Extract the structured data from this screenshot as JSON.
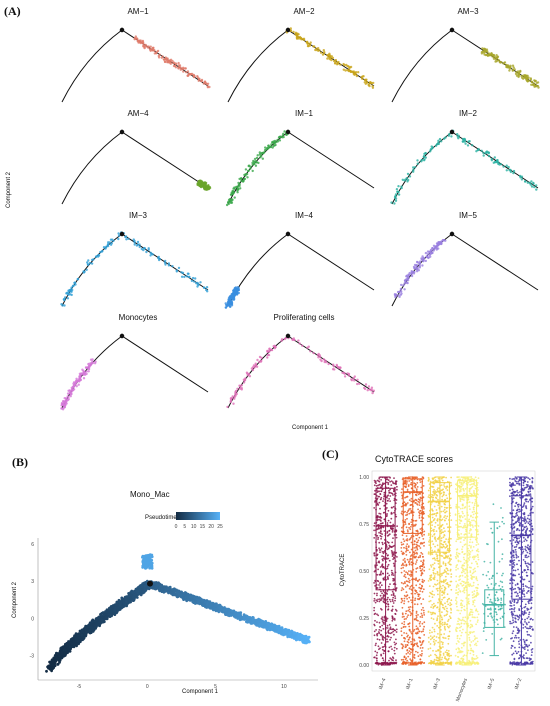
{
  "panel_labels": {
    "a": "(A)",
    "b": "(B)",
    "c": "(C)"
  },
  "chart_data": [
    {
      "type": "scatter",
      "layout": "facet-grid",
      "xlabel": "Component 1",
      "ylabel": "Component 2",
      "facets": [
        {
          "title": "AM−1",
          "color": "#e07b6a",
          "segment": "right",
          "range": [
            0.15,
            1.0
          ]
        },
        {
          "title": "AM−2",
          "color": "#c9a51a",
          "segment": "right",
          "range": [
            0.0,
            1.0
          ]
        },
        {
          "title": "AM−3",
          "color": "#a8a62a",
          "segment": "right",
          "range": [
            0.35,
            1.0
          ]
        },
        {
          "title": "AM−4",
          "color": "#6aa52a",
          "segment": "right",
          "range": [
            0.9,
            1.0
          ]
        },
        {
          "title": "IM−1",
          "color": "#3aa84a",
          "segment": "left",
          "range": [
            0.0,
            1.0
          ]
        },
        {
          "title": "IM−2",
          "color": "#2bb2a3",
          "segment": "both",
          "range": [
            0.0,
            1.0
          ]
        },
        {
          "title": "IM−3",
          "color": "#2f9fd6",
          "segment": "both",
          "range": [
            0.0,
            1.0
          ]
        },
        {
          "title": "IM−4",
          "color": "#3a8fe0",
          "segment": "left",
          "range": [
            0.0,
            0.2
          ]
        },
        {
          "title": "IM−5",
          "color": "#9a7fe0",
          "segment": "left",
          "range": [
            0.1,
            0.9
          ]
        },
        {
          "title": "Monocytes",
          "color": "#d478d8",
          "segment": "left",
          "range": [
            0.0,
            0.6
          ]
        },
        {
          "title": "Proliferating cells",
          "color": "#e070b8",
          "segment": "both",
          "range": [
            0.0,
            1.0
          ]
        }
      ]
    },
    {
      "type": "scatter",
      "title": "Mono_Mac",
      "legend_title": "Pseudotime",
      "legend_ticks": [
        0,
        5,
        10,
        15,
        20,
        25
      ],
      "color_low": "#132b43",
      "color_high": "#56b1f7",
      "xlabel": "Component 1",
      "ylabel": "Component 2",
      "x_ticks": [
        -5,
        0,
        5,
        10
      ],
      "y_ticks": [
        -3,
        0,
        3,
        6
      ],
      "xlim": [
        -8,
        12.5
      ],
      "ylim": [
        -5,
        6.5
      ]
    },
    {
      "type": "box",
      "title": "CytoTRACE scores",
      "ylabel": "CytoTRACE",
      "ylim": [
        0,
        1
      ],
      "y_ticks": [
        "0.00",
        "0.25",
        "0.50",
        "0.75",
        "1.00"
      ],
      "categories": [
        "IM−4",
        "IM−1",
        "IM−3",
        "Monocytes",
        "IM−5",
        "IM−2"
      ],
      "colors": [
        "#8e1a4f",
        "#e8622a",
        "#f2d24a",
        "#f7f07a",
        "#46b4a6",
        "#4a3aa6"
      ],
      "boxes": [
        {
          "min": 0.0,
          "q1": 0.4,
          "median": 0.74,
          "q3": 0.94,
          "max": 1.0
        },
        {
          "min": 0.0,
          "q1": 0.7,
          "median": 0.92,
          "q3": 0.99,
          "max": 1.0
        },
        {
          "min": 0.0,
          "q1": 0.6,
          "median": 0.87,
          "q3": 0.97,
          "max": 1.0
        },
        {
          "min": 0.0,
          "q1": 0.68,
          "median": 0.9,
          "q3": 0.98,
          "max": 1.0
        },
        {
          "min": 0.05,
          "q1": 0.2,
          "median": 0.32,
          "q3": 0.4,
          "max": 0.76
        },
        {
          "min": 0.0,
          "q1": 0.35,
          "median": 0.69,
          "q3": 0.9,
          "max": 1.0
        }
      ]
    }
  ]
}
